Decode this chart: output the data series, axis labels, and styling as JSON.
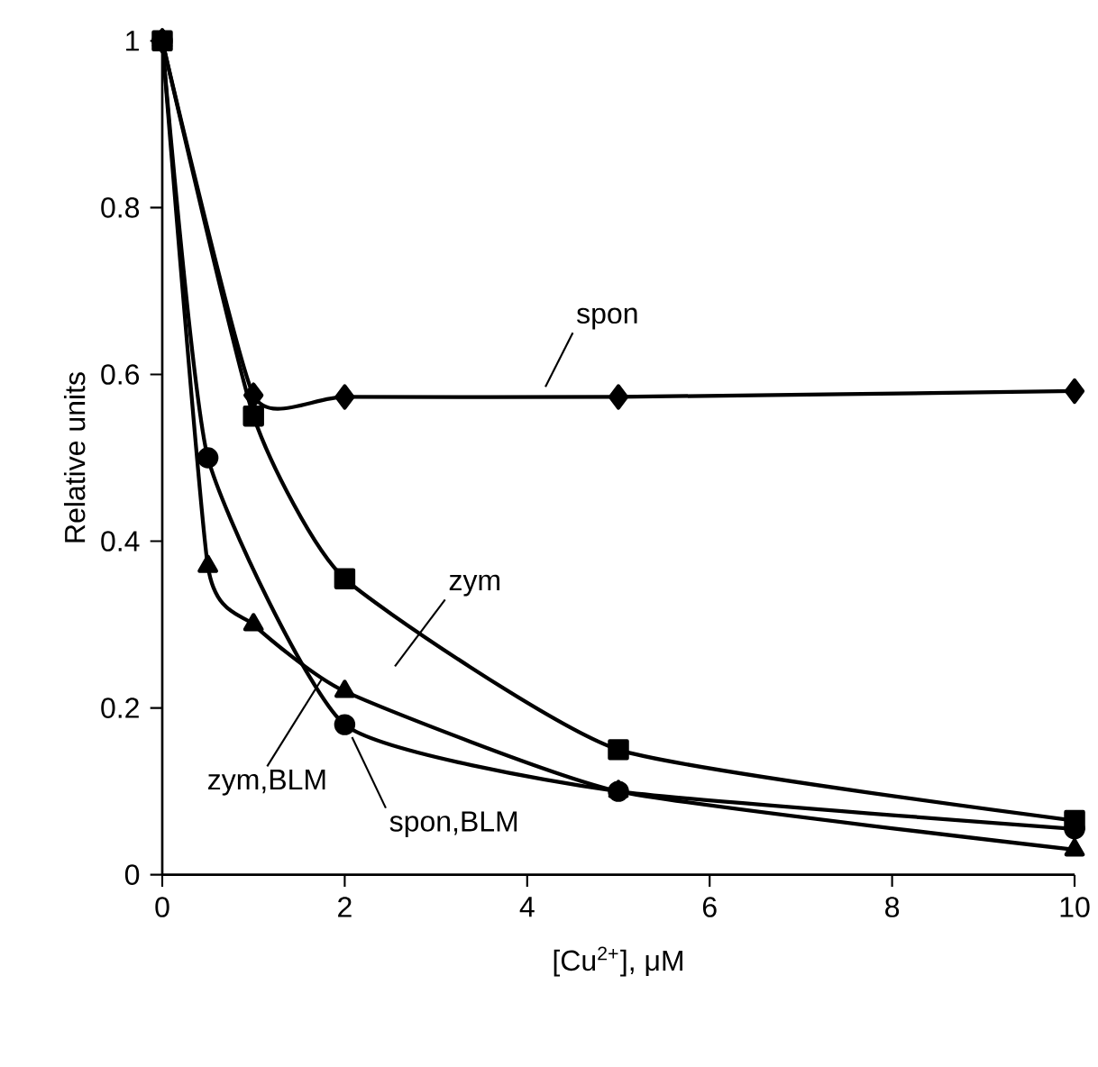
{
  "chart_data": {
    "type": "line",
    "xlabel": "[Cu$^{2+}$], μM",
    "ylabel": "Relative units",
    "xlim": [
      0,
      10
    ],
    "ylim": [
      0,
      1
    ],
    "xticks": [
      0,
      2,
      4,
      6,
      8,
      10
    ],
    "yticks": [
      0,
      0.2,
      0.4,
      0.6,
      0.8,
      1
    ],
    "grid": false,
    "legend": false,
    "series": [
      {
        "name": "spon",
        "color": "#000000",
        "marker": "diamond",
        "x": [
          0,
          1,
          2,
          5,
          10
        ],
        "values": [
          1,
          0.575,
          0.573,
          0.573,
          0.58
        ]
      },
      {
        "name": "zym",
        "color": "#000000",
        "marker": "square",
        "x": [
          0,
          1,
          2,
          5,
          10
        ],
        "values": [
          1,
          0.55,
          0.355,
          0.15,
          0.065
        ]
      },
      {
        "name": "spon,BLM",
        "color": "#000000",
        "marker": "circle",
        "x": [
          0,
          0.5,
          2,
          5,
          10
        ],
        "values": [
          1,
          0.5,
          0.18,
          0.1,
          0.055
        ]
      },
      {
        "name": "zym,BLM",
        "color": "#000000",
        "marker": "triangle",
        "x": [
          0,
          0.5,
          1,
          2,
          5,
          10
        ],
        "values": [
          1,
          0.37,
          0.3,
          0.22,
          0.1,
          0.03
        ]
      }
    ]
  }
}
